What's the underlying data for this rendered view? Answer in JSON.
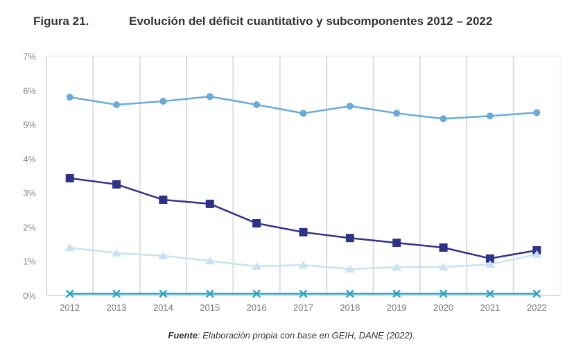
{
  "figure_label": "Figura 21.",
  "title": "Evolución del déficit cuantitativo y subcomponentes 2012 – 2022",
  "source_label": "Fuente",
  "source_text": ": Elaboración propia con base en GEIH, DANE (2022).",
  "chart_data": {
    "type": "line",
    "categories": [
      "2012",
      "2013",
      "2014",
      "2015",
      "2016",
      "2017",
      "2018",
      "2019",
      "2020",
      "2021",
      "2022"
    ],
    "yticks": [
      "0%",
      "1%",
      "2%",
      "3%",
      "4%",
      "5%",
      "6%",
      "7%"
    ],
    "ylim": [
      0,
      7
    ],
    "grid": "vertical",
    "series": [
      {
        "marker": "circle",
        "color": "#6aaad8",
        "values": [
          5.8,
          5.58,
          5.68,
          5.82,
          5.58,
          5.33,
          5.54,
          5.33,
          5.17,
          5.25,
          5.35
        ]
      },
      {
        "marker": "square",
        "color": "#2e3388",
        "values": [
          3.43,
          3.25,
          2.8,
          2.68,
          2.11,
          1.85,
          1.68,
          1.54,
          1.4,
          1.08,
          1.32
        ]
      },
      {
        "marker": "triangle",
        "color": "#c9e2f2",
        "values": [
          1.4,
          1.24,
          1.16,
          1.01,
          0.85,
          0.89,
          0.77,
          0.83,
          0.83,
          0.91,
          1.2
        ]
      },
      {
        "marker": "x",
        "color": "#2fa3c4",
        "values": [
          0.05,
          0.05,
          0.05,
          0.05,
          0.05,
          0.05,
          0.05,
          0.05,
          0.05,
          0.05,
          0.05
        ]
      }
    ]
  }
}
